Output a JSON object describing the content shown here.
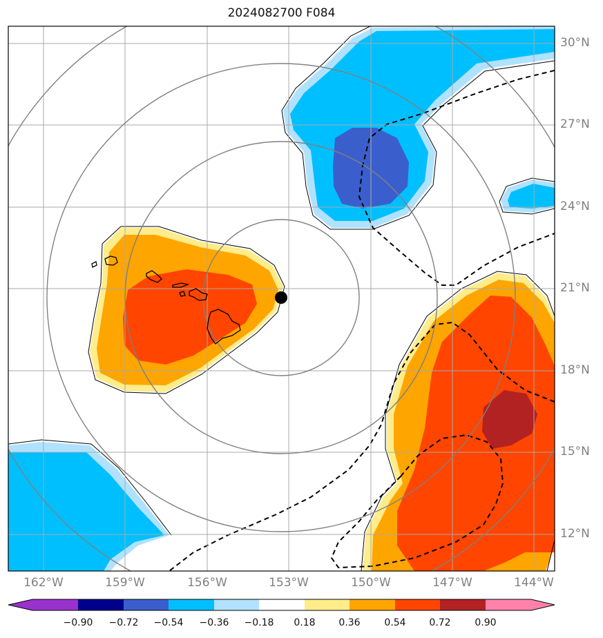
{
  "title": "2024082700 F084",
  "lat_labels": [
    "30°N",
    "27°N",
    "24°N",
    "21°N",
    "18°N",
    "15°N",
    "12°N"
  ],
  "lon_labels": [
    "162°W",
    "159°W",
    "156°W",
    "153°W",
    "150°W",
    "147°W",
    "144°W"
  ],
  "colorbar": {
    "ticks": [
      "−0.90",
      "−0.72",
      "−0.54",
      "−0.36",
      "−0.18",
      "0.18",
      "0.36",
      "0.54",
      "0.72",
      "0.90"
    ],
    "colors": [
      "#9932cc",
      "#00008b",
      "#3a5fcd",
      "#00bfff",
      "#b0e2ff",
      "#ffffff",
      "#ffec8b",
      "#ffa500",
      "#ff4500",
      "#b22222",
      "#ff82ab"
    ]
  },
  "colors": {
    "gridlines": "#a9a9a9",
    "range_rings": "#808080",
    "marker": "#000000",
    "contour": "#000000"
  },
  "marker_location": {
    "lat": 20.6,
    "lon": -153.3
  }
}
